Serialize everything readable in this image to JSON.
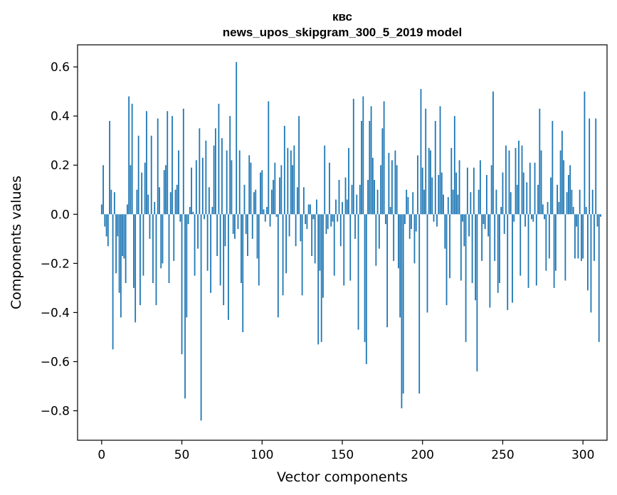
{
  "chart_data": {
    "type": "bar",
    "title": "квс",
    "subtitle": "news_upos_skipgram_300_5_2019 model",
    "xlabel": "Vector components",
    "ylabel": "Components values",
    "xlim": [
      -15,
      315
    ],
    "ylim": [
      -0.92,
      0.69
    ],
    "xticks": [
      0,
      50,
      100,
      150,
      200,
      250,
      300
    ],
    "yticks": [
      -0.8,
      -0.6,
      -0.4,
      -0.2,
      0.0,
      0.2,
      0.4,
      0.6
    ],
    "ytick_labels": [
      "−0.8",
      "−0.6",
      "−0.4",
      "−0.2",
      "0.0",
      "0.2",
      "0.4",
      "0.6"
    ],
    "bar_color": "#1f77b4",
    "values": [
      0.04,
      0.2,
      -0.05,
      -0.09,
      -0.13,
      0.38,
      0.1,
      -0.55,
      0.09,
      -0.24,
      -0.09,
      -0.32,
      -0.42,
      -0.17,
      -0.18,
      -0.28,
      0.04,
      0.48,
      0.2,
      0.45,
      -0.3,
      -0.44,
      0.1,
      0.32,
      -0.37,
      0.17,
      -0.25,
      0.21,
      0.42,
      0.08,
      -0.1,
      0.32,
      -0.28,
      0.05,
      -0.37,
      0.39,
      0.11,
      -0.22,
      -0.2,
      0.18,
      0.2,
      0.42,
      -0.28,
      0.09,
      0.4,
      -0.19,
      0.1,
      0.12,
      0.26,
      -0.03,
      -0.57,
      0.43,
      -0.75,
      -0.42,
      -0.04,
      0.03,
      0.19,
      0.01,
      -0.25,
      0.22,
      -0.14,
      0.35,
      -0.84,
      0.23,
      -0.02,
      0.3,
      -0.23,
      0.11,
      -0.32,
      0.03,
      0.28,
      0.35,
      -0.17,
      0.45,
      -0.29,
      0.31,
      -0.37,
      -0.13,
      0.26,
      -0.43,
      0.4,
      0.22,
      -0.08,
      -0.1,
      0.62,
      -0.06,
      0.26,
      -0.28,
      -0.48,
      0.12,
      -0.08,
      -0.17,
      0.24,
      0.21,
      -0.1,
      0.09,
      0.1,
      -0.18,
      -0.29,
      0.17,
      0.18,
      0.02,
      -0.03,
      0.03,
      0.46,
      -0.05,
      0.1,
      0.14,
      0.21,
      -0.01,
      -0.42,
      0.15,
      0.2,
      -0.33,
      0.36,
      -0.24,
      0.27,
      -0.09,
      0.26,
      0.2,
      0.28,
      -0.13,
      0.11,
      0.4,
      -0.11,
      -0.33,
      0.11,
      -0.04,
      -0.06,
      0.04,
      0.04,
      -0.17,
      -0.02,
      -0.2,
      0.06,
      -0.53,
      -0.23,
      -0.52,
      -0.34,
      0.28,
      -0.08,
      -0.06,
      0.21,
      -0.05,
      -0.03,
      -0.25,
      0.06,
      -0.03,
      0.14,
      -0.13,
      0.05,
      -0.29,
      0.15,
      0.06,
      0.27,
      -0.27,
      0.12,
      0.47,
      -0.1,
      0.08,
      -0.47,
      0.12,
      0.38,
      0.48,
      -0.52,
      -0.61,
      0.14,
      0.38,
      0.44,
      0.23,
      0.14,
      -0.21,
      0.1,
      -0.14,
      0.2,
      0.35,
      0.46,
      -0.04,
      -0.46,
      0.25,
      0.03,
      0.22,
      -0.19,
      0.26,
      0.2,
      -0.22,
      -0.42,
      -0.79,
      -0.73,
      -0.04,
      0.1,
      0.07,
      -0.1,
      -0.06,
      0.09,
      -0.2,
      -0.07,
      0.24,
      -0.73,
      0.51,
      0.19,
      0.1,
      0.43,
      -0.4,
      0.27,
      0.26,
      0.15,
      -0.03,
      0.38,
      -0.05,
      0.16,
      0.44,
      0.17,
      0.08,
      -0.14,
      -0.37,
      0.07,
      -0.26,
      0.27,
      0.1,
      0.4,
      0.17,
      0.08,
      0.22,
      -0.27,
      -0.03,
      -0.13,
      -0.52,
      0.19,
      -0.09,
      0.09,
      -0.28,
      0.19,
      -0.35,
      -0.64,
      0.1,
      0.22,
      -0.19,
      -0.04,
      -0.06,
      0.16,
      -0.09,
      -0.38,
      0.2,
      0.5,
      -0.19,
      0.1,
      -0.32,
      -0.28,
      0.03,
      0.17,
      -0.08,
      0.28,
      -0.39,
      0.26,
      0.09,
      -0.36,
      -0.03,
      0.27,
      0.12,
      0.3,
      -0.25,
      0.28,
      0.17,
      -0.05,
      0.13,
      -0.3,
      0.21,
      -0.02,
      -0.03,
      0.21,
      -0.29,
      0.12,
      0.43,
      0.26,
      0.04,
      -0.02,
      -0.23,
      0.05,
      -0.18,
      0.15,
      0.38,
      -0.3,
      -0.23,
      0.12,
      0.05,
      0.26,
      0.34,
      0.22,
      -0.27,
      0.09,
      0.16,
      0.2,
      0.1,
      0.03,
      -0.18,
      -0.05,
      -0.18,
      0.1,
      -0.19,
      -0.18,
      0.5,
      0.03,
      -0.31,
      0.39,
      -0.4,
      0.1,
      -0.19,
      0.39,
      -0.05,
      -0.52,
      -0.01
    ]
  }
}
